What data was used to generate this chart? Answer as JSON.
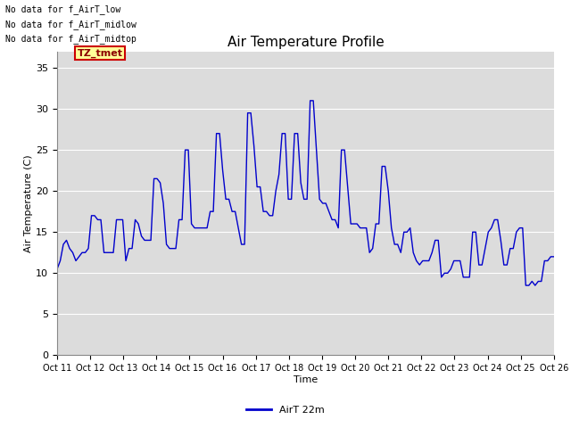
{
  "title": "Air Temperature Profile",
  "xlabel": "Time",
  "ylabel": "Air Temperature (C)",
  "line_color": "#0000CC",
  "bg_color": "#DCDCDC",
  "ylim": [
    0,
    37
  ],
  "yticks": [
    0,
    5,
    10,
    15,
    20,
    25,
    30,
    35
  ],
  "legend_label": "AirT 22m",
  "legend_line_color": "#0000CC",
  "annotations": [
    "No data for f_AirT_low",
    "No data for f_AirT_midlow",
    "No data for f_AirT_midtop"
  ],
  "tz_tmet_label": "TZ_tmet",
  "x_tick_labels": [
    "Oct 11",
    "Oct 12",
    "Oct 13",
    "Oct 14",
    "Oct 15",
    "Oct 16",
    "Oct 17",
    "Oct 18",
    "Oct 19",
    "Oct 20",
    "Oct 21",
    "Oct 22",
    "Oct 23",
    "Oct 24",
    "Oct 25",
    "Oct 26"
  ],
  "temp_data": [
    10.5,
    11.5,
    13.5,
    14.0,
    13.0,
    12.5,
    11.5,
    12.0,
    12.5,
    12.5,
    13.0,
    17.0,
    17.0,
    16.5,
    16.5,
    12.5,
    12.5,
    12.5,
    12.5,
    16.5,
    16.5,
    16.5,
    11.5,
    13.0,
    13.0,
    16.5,
    16.0,
    14.5,
    14.0,
    14.0,
    14.0,
    21.5,
    21.5,
    21.0,
    18.5,
    13.5,
    13.0,
    13.0,
    13.0,
    16.5,
    16.5,
    25.0,
    25.0,
    16.0,
    15.5,
    15.5,
    15.5,
    15.5,
    15.5,
    17.5,
    17.5,
    27.0,
    27.0,
    22.5,
    19.0,
    19.0,
    17.5,
    17.5,
    15.5,
    13.5,
    13.5,
    29.5,
    29.5,
    25.5,
    20.5,
    20.5,
    17.5,
    17.5,
    17.0,
    17.0,
    20.0,
    22.0,
    27.0,
    27.0,
    19.0,
    19.0,
    27.0,
    27.0,
    21.0,
    19.0,
    19.0,
    31.0,
    31.0,
    25.0,
    19.0,
    18.5,
    18.5,
    17.5,
    16.5,
    16.5,
    15.5,
    25.0,
    25.0,
    20.5,
    16.0,
    16.0,
    16.0,
    15.5,
    15.5,
    15.5,
    12.5,
    13.0,
    16.0,
    16.0,
    23.0,
    23.0,
    20.0,
    15.5,
    13.5,
    13.5,
    12.5,
    15.0,
    15.0,
    15.5,
    12.5,
    11.5,
    11.0,
    11.5,
    11.5,
    11.5,
    12.5,
    14.0,
    14.0,
    9.5,
    10.0,
    10.0,
    10.5,
    11.5,
    11.5,
    11.5,
    9.5,
    9.5,
    9.5,
    15.0,
    15.0,
    11.0,
    11.0,
    13.0,
    15.0,
    15.5,
    16.5,
    16.5,
    14.0,
    11.0,
    11.0,
    13.0,
    13.0,
    15.0,
    15.5,
    15.5,
    8.5,
    8.5,
    9.0,
    8.5,
    9.0,
    9.0,
    11.5,
    11.5,
    12.0,
    12.0
  ]
}
